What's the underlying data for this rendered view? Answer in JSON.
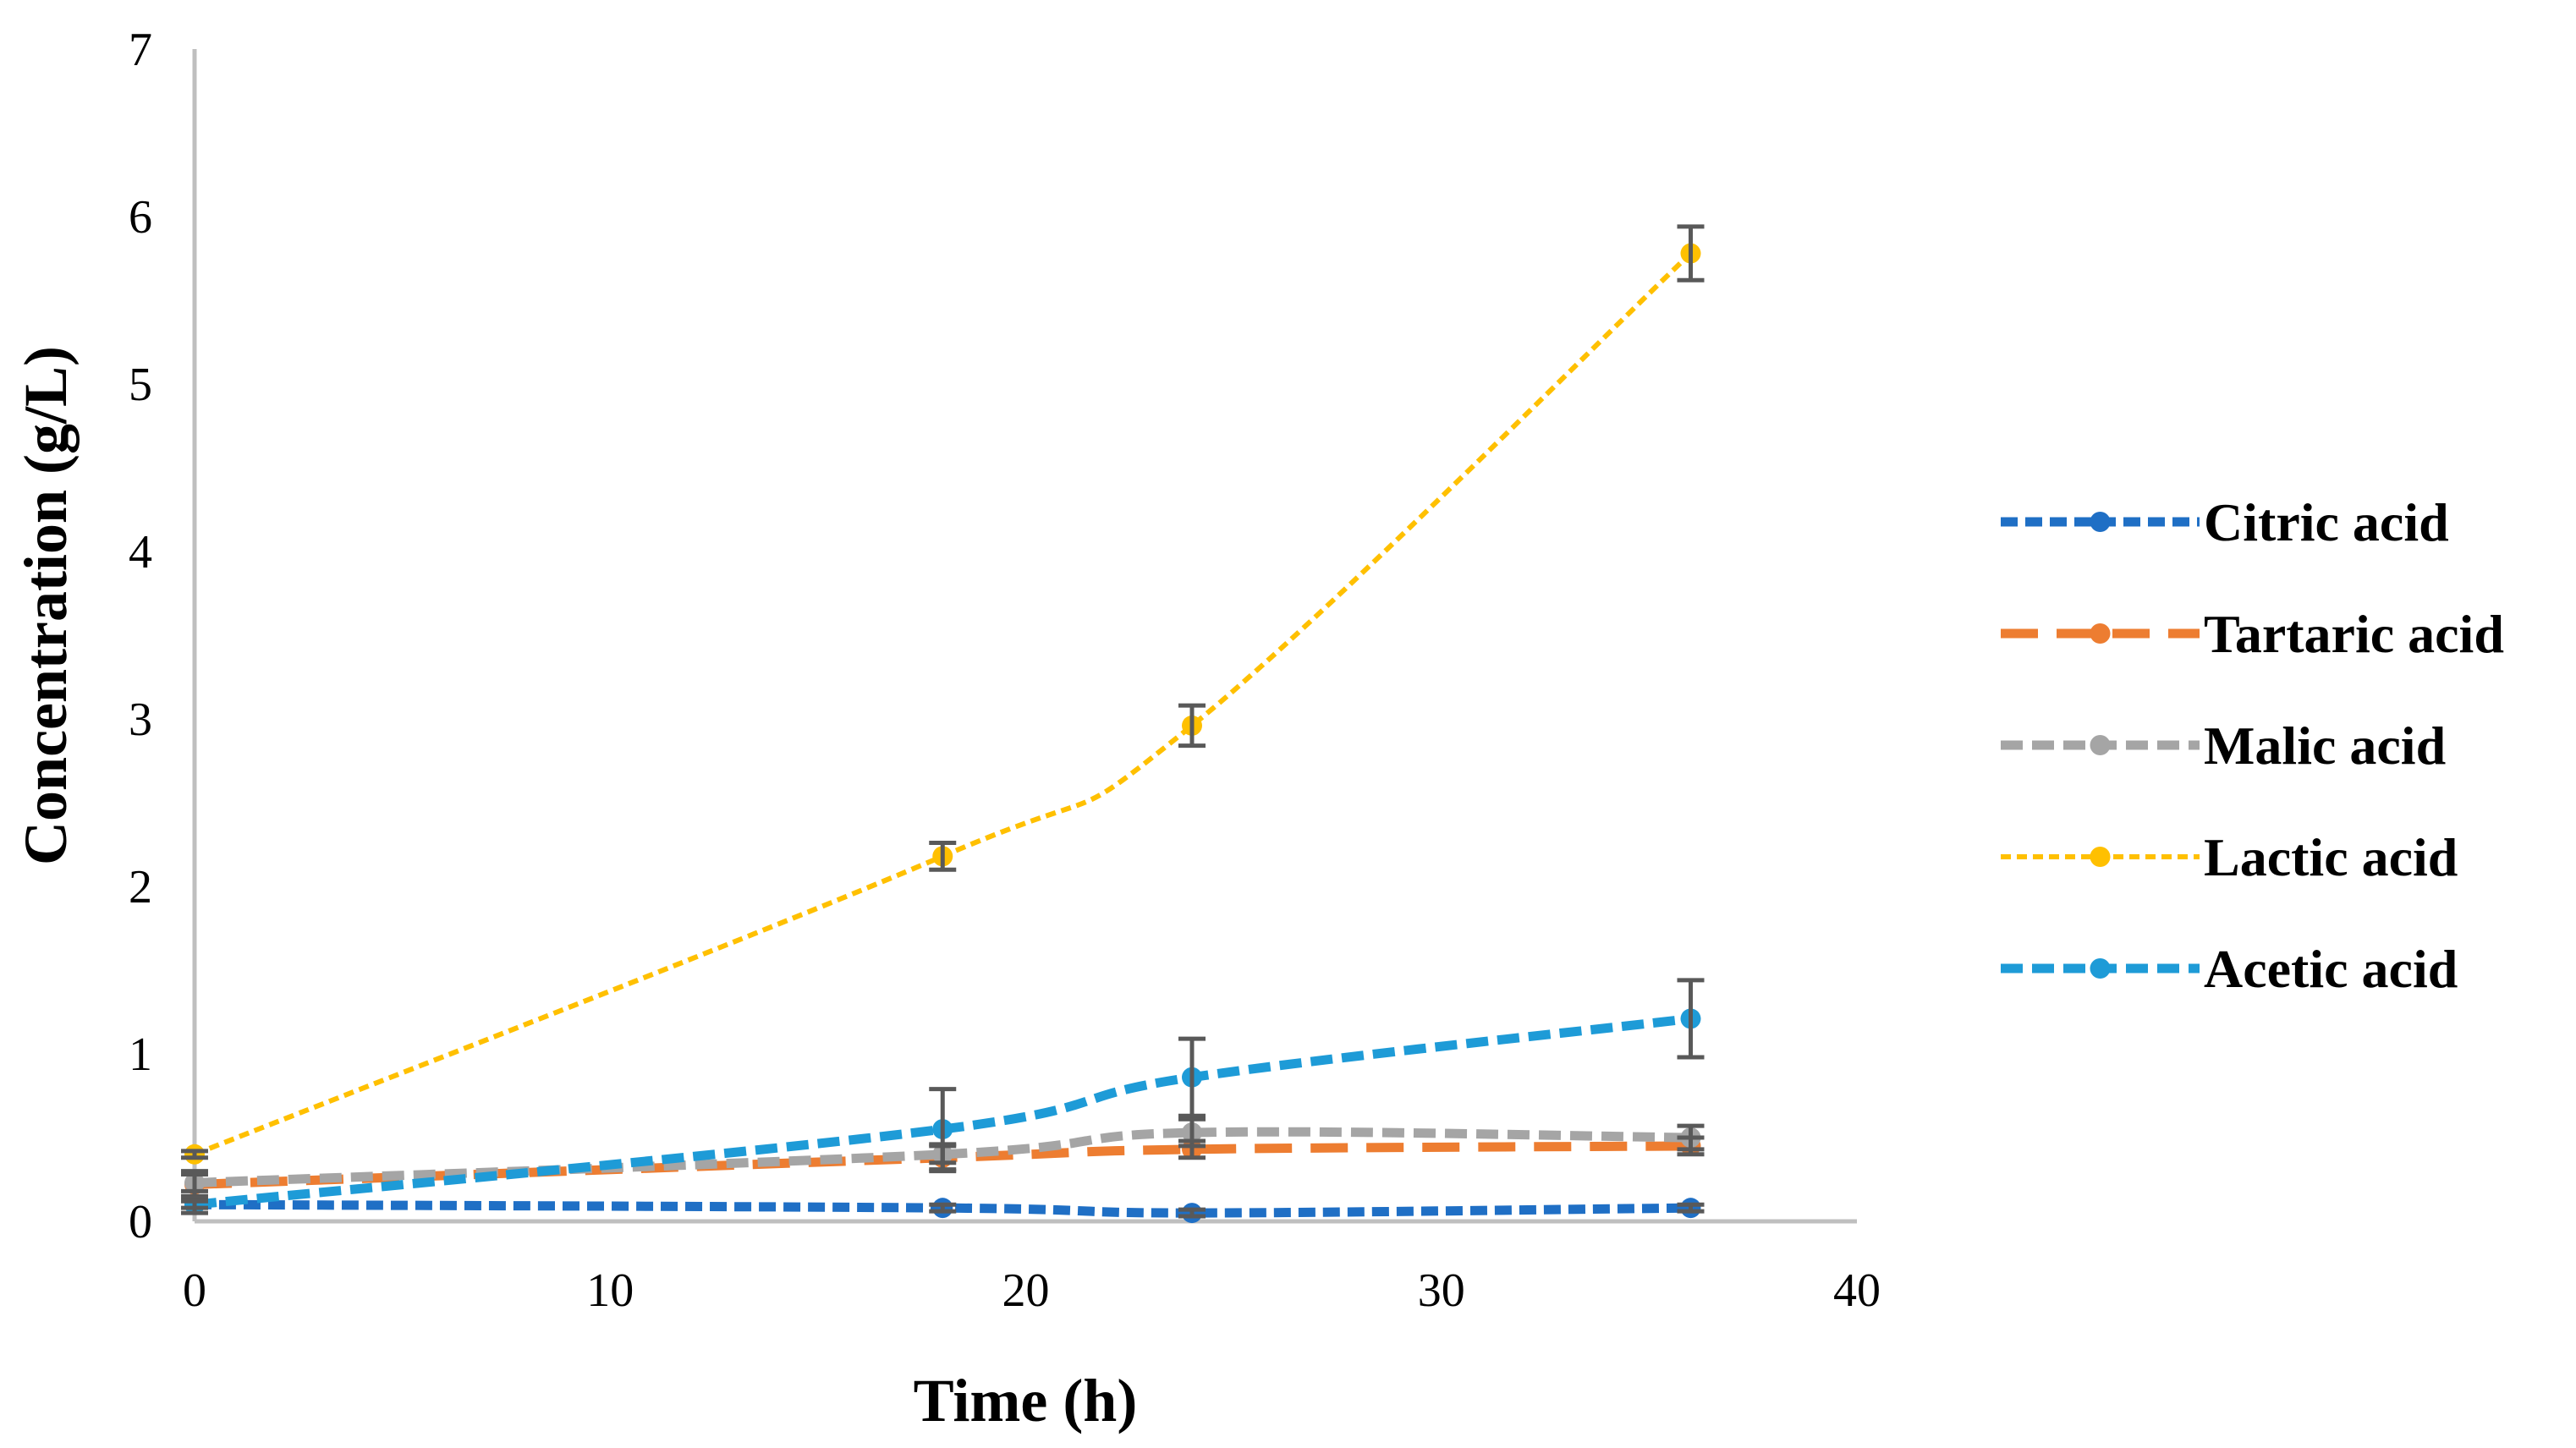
{
  "chart_data": {
    "type": "line",
    "title": "",
    "xlabel": "Time (h)",
    "ylabel": "Concentration (g/L)",
    "xlim": [
      0,
      40
    ],
    "ylim": [
      0,
      7
    ],
    "xticks": [
      0,
      10,
      20,
      30,
      40
    ],
    "yticks": [
      0,
      1,
      2,
      3,
      4,
      5,
      6,
      7
    ],
    "x": [
      0,
      18,
      24,
      36
    ],
    "legend_position": "right",
    "grid": false,
    "series": [
      {
        "name": "Citric acid",
        "color": "#1f6fc5",
        "dash": "short",
        "values": [
          0.1,
          0.08,
          0.05,
          0.08
        ],
        "errors": [
          0.05,
          0.02,
          0.02,
          0.02
        ]
      },
      {
        "name": "Tartaric acid",
        "color": "#ed7d31",
        "dash": "long",
        "values": [
          0.22,
          0.38,
          0.43,
          0.45
        ],
        "errors": [
          0.08,
          0.08,
          0.05,
          0.05
        ]
      },
      {
        "name": "Malic acid",
        "color": "#a5a5a5",
        "dash": "medium",
        "values": [
          0.23,
          0.4,
          0.53,
          0.5
        ],
        "errors": [
          0.05,
          0.05,
          0.08,
          0.07
        ]
      },
      {
        "name": "Lactic acid",
        "color": "#ffc000",
        "dash": "fine",
        "values": [
          0.4,
          2.18,
          2.96,
          5.78
        ],
        "errors": [
          0.02,
          0.08,
          0.12,
          0.16
        ]
      },
      {
        "name": "Acetic acid",
        "color": "#1e9bd7",
        "dash": "medium",
        "values": [
          0.1,
          0.55,
          0.86,
          1.21
        ],
        "errors": [
          0.02,
          0.24,
          0.23,
          0.23
        ]
      }
    ]
  }
}
